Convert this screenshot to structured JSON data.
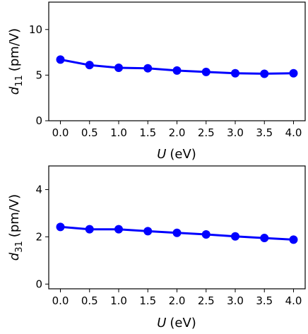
{
  "chart_data": [
    {
      "type": "line",
      "x": [
        0.0,
        0.5,
        1.0,
        1.5,
        2.0,
        2.5,
        3.0,
        3.5,
        4.0
      ],
      "x_tick_labels": [
        "0.0",
        "0.5",
        "1.0",
        "1.5",
        "2.0",
        "2.5",
        "3.0",
        "3.5",
        "4.0"
      ],
      "y_ticks": [
        "0",
        "5",
        "10"
      ],
      "xlim": [
        -0.2,
        4.2
      ],
      "ylim": [
        0,
        13
      ],
      "xlabel": {
        "var": "U",
        "unit": "(eV)"
      },
      "ylabel": {
        "var": "d",
        "sub": "11",
        "unit": "(pm/V)"
      },
      "series": [
        {
          "values": [
            6.7,
            6.1,
            5.8,
            5.75,
            5.5,
            5.35,
            5.2,
            5.15,
            5.2
          ],
          "color": "#0000ff"
        }
      ],
      "grid": false
    },
    {
      "type": "line",
      "x": [
        0.0,
        0.5,
        1.0,
        1.5,
        2.0,
        2.5,
        3.0,
        3.5,
        4.0
      ],
      "x_tick_labels": [
        "0.0",
        "0.5",
        "1.0",
        "1.5",
        "2.0",
        "2.5",
        "3.0",
        "3.5",
        "4.0"
      ],
      "y_ticks": [
        "0",
        "2",
        "4"
      ],
      "xlim": [
        -0.2,
        4.2
      ],
      "ylim": [
        -0.2,
        5.0
      ],
      "xlabel": {
        "var": "U",
        "unit": "(eV)"
      },
      "ylabel": {
        "var": "d",
        "sub": "31",
        "unit": "(pm/V)"
      },
      "series": [
        {
          "values": [
            2.42,
            2.32,
            2.32,
            2.24,
            2.17,
            2.1,
            2.02,
            1.95,
            1.88
          ],
          "color": "#0000ff"
        }
      ],
      "grid": false
    }
  ]
}
